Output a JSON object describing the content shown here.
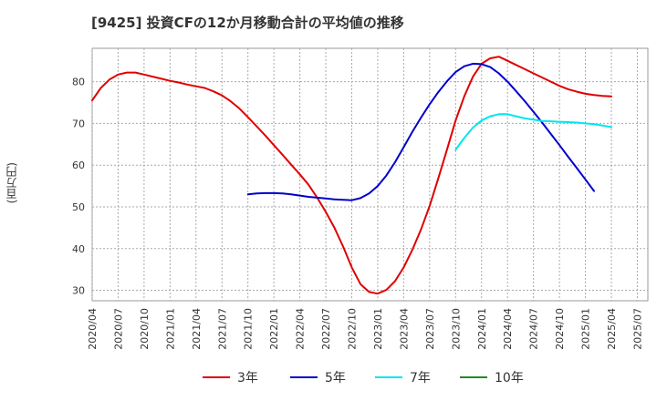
{
  "chart_data": {
    "type": "line",
    "title": "[9425]  投資CFの12か月移動合計の平均値の推移",
    "ylabel": "(百万円)",
    "xlabel": "",
    "ylim": [
      27.5,
      88
    ],
    "yticks": [
      30,
      40,
      50,
      60,
      70,
      80
    ],
    "grid": true,
    "legend_position": "bottom",
    "x_ticks": [
      "2020/04",
      "2020/07",
      "2020/10",
      "2021/01",
      "2021/04",
      "2021/07",
      "2021/10",
      "2022/01",
      "2022/04",
      "2022/07",
      "2022/10",
      "2023/01",
      "2023/04",
      "2023/07",
      "2023/10",
      "2024/01",
      "2024/04",
      "2024/07",
      "2024/10",
      "2025/01",
      "2025/04",
      "2025/07"
    ],
    "series": [
      {
        "name": "3年",
        "color": "#e00000",
        "x": [
          "2020/04",
          "2020/05",
          "2020/06",
          "2020/07",
          "2020/08",
          "2020/09",
          "2020/10",
          "2020/11",
          "2020/12",
          "2021/01",
          "2021/02",
          "2021/03",
          "2021/04",
          "2021/05",
          "2021/06",
          "2021/07",
          "2021/08",
          "2021/09",
          "2021/10",
          "2021/11",
          "2021/12",
          "2022/01",
          "2022/02",
          "2022/03",
          "2022/04",
          "2022/05",
          "2022/06",
          "2022/07",
          "2022/08",
          "2022/09",
          "2022/10",
          "2022/11",
          "2022/12",
          "2023/01",
          "2023/02",
          "2023/03",
          "2023/04",
          "2023/05",
          "2023/06",
          "2023/07",
          "2023/08",
          "2023/09",
          "2023/10",
          "2023/11",
          "2023/12",
          "2024/01",
          "2024/02",
          "2024/03",
          "2024/04",
          "2024/05",
          "2024/06",
          "2024/07",
          "2024/08",
          "2024/09",
          "2024/10",
          "2024/11",
          "2024/12",
          "2025/01",
          "2025/02",
          "2025/03",
          "2025/04"
        ],
        "values": [
          75.5,
          78.5,
          80.5,
          81.7,
          82.2,
          82.2,
          81.7,
          81.2,
          80.7,
          80.2,
          79.8,
          79.3,
          78.9,
          78.5,
          77.7,
          76.7,
          75.3,
          73.6,
          71.5,
          69.3,
          67.1,
          64.8,
          62.5,
          60.1,
          57.8,
          55.3,
          52.2,
          48.8,
          45.0,
          40.5,
          35.5,
          31.5,
          29.6,
          29.2,
          30.1,
          32.2,
          35.5,
          39.7,
          44.6,
          50.2,
          56.8,
          63.7,
          70.7,
          76.5,
          81.2,
          84.3,
          85.6,
          86.0,
          85.0,
          84.0,
          83.0,
          82.0,
          81.0,
          80.0,
          79.0,
          78.2,
          77.6,
          77.1,
          76.8,
          76.6,
          76.5
        ]
      },
      {
        "name": "5年",
        "color": "#0000cc",
        "x": [
          "2021/10",
          "2021/11",
          "2021/12",
          "2022/01",
          "2022/02",
          "2022/03",
          "2022/04",
          "2022/05",
          "2022/06",
          "2022/07",
          "2022/08",
          "2022/09",
          "2022/10",
          "2022/11",
          "2022/12",
          "2023/01",
          "2023/02",
          "2023/03",
          "2023/04",
          "2023/05",
          "2023/06",
          "2023/07",
          "2023/08",
          "2023/09",
          "2023/10",
          "2023/11",
          "2023/12",
          "2024/01",
          "2024/02",
          "2024/03",
          "2024/04",
          "2024/05",
          "2024/06",
          "2024/07",
          "2024/08",
          "2024/09",
          "2024/10",
          "2024/11",
          "2024/12",
          "2025/01",
          "2025/02",
          "2025/03",
          "2025/04"
        ],
        "values": [
          53.0,
          53.2,
          53.3,
          53.3,
          53.2,
          53.0,
          52.7,
          52.4,
          52.2,
          52.0,
          51.8,
          51.7,
          51.6,
          52.1,
          53.2,
          55.0,
          57.5,
          60.7,
          64.3,
          68.0,
          71.4,
          74.6,
          77.5,
          80.1,
          82.3,
          83.7,
          84.3,
          84.2,
          83.5,
          82.0,
          80.0,
          77.7,
          75.3,
          72.8,
          70.2,
          67.5,
          64.8,
          62.0,
          59.3,
          56.6,
          53.8,
          null,
          null
        ]
      },
      {
        "name": "7年",
        "color": "#00e5ee",
        "x": [
          "2023/10",
          "2023/11",
          "2023/12",
          "2024/01",
          "2024/02",
          "2024/03",
          "2024/04",
          "2024/05",
          "2024/06",
          "2024/07",
          "2024/08",
          "2024/09",
          "2024/10",
          "2024/11",
          "2024/12",
          "2025/01",
          "2025/02",
          "2025/03",
          "2025/04"
        ],
        "values": [
          63.7,
          66.5,
          69.0,
          70.7,
          71.7,
          72.2,
          72.2,
          71.7,
          71.2,
          70.9,
          70.6,
          70.5,
          70.4,
          70.3,
          70.2,
          70.0,
          69.8,
          69.5,
          69.1
        ]
      },
      {
        "name": "10年",
        "color": "#228b22",
        "x": [],
        "values": []
      }
    ]
  }
}
